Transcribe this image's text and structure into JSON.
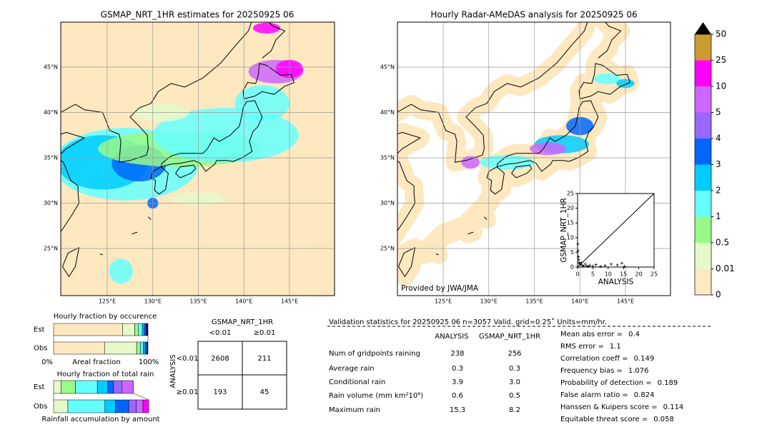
{
  "left_map": {
    "title": "GSMAP_NRT_1HR estimates for 20250925 06",
    "lat_labels": [
      "45°N",
      "40°N",
      "35°N",
      "30°N",
      "25°N"
    ],
    "lon_labels": [
      "125°E",
      "130°E",
      "135°E",
      "140°E",
      "145°E"
    ]
  },
  "right_map": {
    "title": "Hourly Radar-AMeDAS analysis for 20250925 06",
    "lat_labels": [
      "45°N",
      "40°N",
      "35°N",
      "30°N",
      "25°N"
    ],
    "lon_labels": [
      "125°E",
      "130°E",
      "135°E",
      "140°E",
      "145°E"
    ],
    "credit": "Provided by JWA/JMA"
  },
  "chart_data": {
    "type": "scatter",
    "xlabel": "ANALYSIS",
    "ylabel": "GSMAP_NRT_1HR",
    "xlim": [
      0,
      25
    ],
    "ylim": [
      0,
      25
    ],
    "xticks": [
      0,
      5,
      10,
      15,
      20,
      25
    ],
    "yticks": [
      0,
      5,
      10,
      15,
      20,
      25
    ],
    "x": [
      0.1,
      0.2,
      0.3,
      0.4,
      0.5,
      0.7,
      1.0,
      1.3,
      1.6,
      2.0,
      2.5,
      3.0,
      3.5,
      4.0,
      5.0,
      6.0,
      7.5,
      9.0,
      11.0,
      13.0,
      14.5,
      15.3
    ],
    "y": [
      7.8,
      5.5,
      3.5,
      2.5,
      1.5,
      1.2,
      0.8,
      1.5,
      0.5,
      0.3,
      1.0,
      0.4,
      0.2,
      0.6,
      0.3,
      0.8,
      0.2,
      0.5,
      1.0,
      0.7,
      1.3,
      0.2
    ],
    "color": "#000000"
  },
  "colorbar": {
    "levels": [
      0,
      0.01,
      0.5,
      1,
      2,
      3,
      4,
      5,
      10,
      25,
      50
    ],
    "colors": [
      "#fde8c0",
      "#e6f9c9",
      "#99f98a",
      "#66ffff",
      "#00ccff",
      "#0066ff",
      "#9966ff",
      "#cc66ff",
      "#ff00ff",
      "#cc9933"
    ]
  },
  "occurrence": {
    "title": "Hourly fraction by occurence",
    "rows": [
      "Est",
      "Obs"
    ],
    "xlabel": "Areal fraction",
    "x_min_label": "0%",
    "x_max_label": "100%",
    "colors": [
      "#fde8c0",
      "#e6f9c9",
      "#99f98a",
      "#66ffff",
      "#00ccff",
      "#0066ff",
      "#000080"
    ],
    "values": [
      [
        73,
        13,
        4,
        4,
        2,
        2,
        2
      ],
      [
        54,
        34,
        4,
        3,
        2,
        2,
        1
      ]
    ]
  },
  "amount": {
    "title": "Hourly fraction of total rain",
    "rows": [
      "Est",
      "Obs"
    ],
    "xlabel": "Rainfall accumulation by amount",
    "colors": [
      "#e6f9c9",
      "#99f98a",
      "#66ffff",
      "#00ccff",
      "#0066ff",
      "#9966ff",
      "#cc66ff",
      "#ff00ff"
    ],
    "values": [
      [
        8,
        15,
        23,
        11,
        6,
        9,
        12,
        0
      ],
      [
        15,
        0,
        39,
        11,
        14,
        8,
        7,
        6
      ]
    ]
  },
  "contingency": {
    "title": "GSMAP_NRT_1HR",
    "col_labels": [
      "<0.01",
      "≥0.01"
    ],
    "row_title": "ANALYSIS",
    "row_labels": [
      "<0.01",
      "≥0.01"
    ],
    "cells": [
      [
        2608,
        211
      ],
      [
        193,
        45
      ]
    ]
  },
  "validation": {
    "header": "Validation statistics for 20250925 06  n=3057 Valid. grid=0.25˚ Units=mm/hr.",
    "columns": [
      "ANALYSIS",
      "GSMAP_NRT_1HR"
    ],
    "rows": [
      {
        "name": "Num of gridpoints raining",
        "values": [
          "238",
          "256"
        ]
      },
      {
        "name": "Average rain",
        "values": [
          "0.3",
          "0.3"
        ]
      },
      {
        "name": "Conditional rain",
        "values": [
          "3.9",
          "3.0"
        ]
      },
      {
        "name": "Rain volume (mm km²10⁶)",
        "values": [
          "0.6",
          "0.5"
        ]
      },
      {
        "name": "Maximum rain",
        "values": [
          "15.3",
          "8.2"
        ]
      }
    ],
    "scores": [
      {
        "label": "Mean abs error =",
        "value": "0.4"
      },
      {
        "label": "RMS error =",
        "value": "1.1"
      },
      {
        "label": "Correlation coeff =",
        "value": "0.149"
      },
      {
        "label": "Frequency bias =",
        "value": "1.076"
      },
      {
        "label": "Probability of detection =",
        "value": "0.189"
      },
      {
        "label": "False alarm ratio =",
        "value": "0.824"
      },
      {
        "label": "Hanssen & Kuipers score =",
        "value": "0.114"
      },
      {
        "label": "Equitable threat score =",
        "value": "0.058"
      }
    ]
  }
}
